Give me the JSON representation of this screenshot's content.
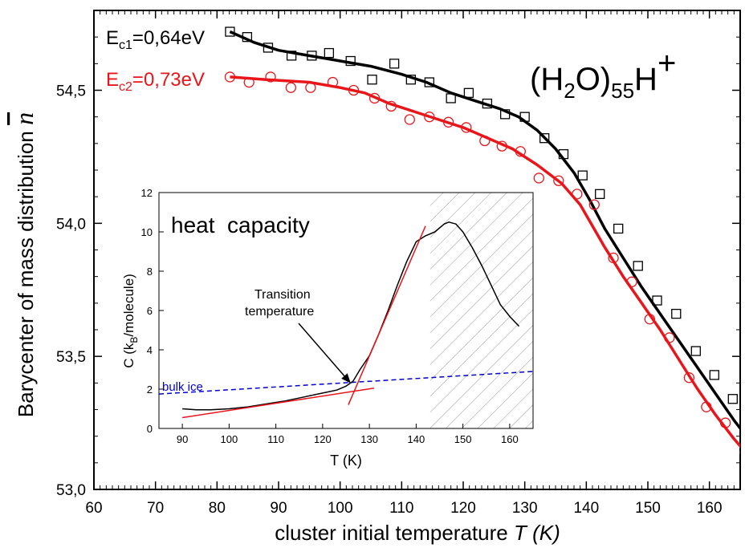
{
  "chart_data": [
    {
      "type": "scatter",
      "xlabel_text": "cluster initial temperature",
      "xlabel_symbol": "T",
      "xlabel_unit": "(K)",
      "ylabel_text": "Barycenter of mass distribution",
      "ylabel_symbol": "n",
      "xlim": [
        60,
        165
      ],
      "ylim": [
        53.0,
        54.8
      ],
      "xticks": [
        60,
        70,
        80,
        90,
        100,
        110,
        120,
        130,
        140,
        150,
        160
      ],
      "yticks": [
        53.0,
        53.5,
        54.0,
        54.5
      ],
      "ytick_labels": [
        "53,0",
        "53,5",
        "54,0",
        "54,5"
      ],
      "annotation": {
        "base": "(H",
        "sub1": "2",
        "mid": "O)",
        "sub2": "55",
        "tail": "H",
        "sup": "+"
      },
      "series": [
        {
          "name": "E_c1=0,64eV",
          "label_main": "E",
          "label_sub": "c1",
          "label_rest": "=0,64eV",
          "color": "#000000",
          "marker": "square",
          "points": [
            [
              82.1,
              54.72
            ],
            [
              84.9,
              54.7
            ],
            [
              88.3,
              54.66
            ],
            [
              92.1,
              54.63
            ],
            [
              95.4,
              54.63
            ],
            [
              98.2,
              54.64
            ],
            [
              101.7,
              54.61
            ],
            [
              105.2,
              54.54
            ],
            [
              108.8,
              54.6
            ],
            [
              111.5,
              54.54
            ],
            [
              114.5,
              54.53
            ],
            [
              118.0,
              54.47
            ],
            [
              120.9,
              54.49
            ],
            [
              123.9,
              54.45
            ],
            [
              126.8,
              54.41
            ],
            [
              130.0,
              54.4
            ],
            [
              133.2,
              54.32
            ],
            [
              136.3,
              54.26
            ],
            [
              139.4,
              54.18
            ],
            [
              142.2,
              54.11
            ],
            [
              145.2,
              53.98
            ],
            [
              148.4,
              53.84
            ],
            [
              151.5,
              53.71
            ],
            [
              154.6,
              53.66
            ],
            [
              157.8,
              53.52
            ],
            [
              160.8,
              53.43
            ],
            [
              163.8,
              53.34
            ],
            [
              166.9,
              53.24
            ]
          ],
          "fit": [
            [
              82.1,
              54.72
            ],
            [
              86,
              54.68
            ],
            [
              90,
              54.65
            ],
            [
              95,
              54.63
            ],
            [
              100,
              54.61
            ],
            [
              105,
              54.59
            ],
            [
              110,
              54.56
            ],
            [
              114,
              54.53
            ],
            [
              118,
              54.49
            ],
            [
              122,
              54.46
            ],
            [
              126,
              54.43
            ],
            [
              129,
              54.4
            ],
            [
              132,
              54.35
            ],
            [
              135,
              54.28
            ],
            [
              138,
              54.19
            ],
            [
              140.5,
              54.09
            ],
            [
              143,
              53.98
            ],
            [
              146,
              53.87
            ],
            [
              149,
              53.76
            ],
            [
              152,
              53.66
            ],
            [
              155,
              53.56
            ],
            [
              158,
              53.46
            ],
            [
              161,
              53.36
            ],
            [
              164,
              53.26
            ],
            [
              167,
              53.17
            ]
          ]
        },
        {
          "name": "E_c2=0,73eV",
          "label_main": "E",
          "label_sub": "c2",
          "label_rest": "=0,73eV",
          "color": "#e8161b",
          "marker": "circle",
          "points": [
            [
              82.1,
              54.55
            ],
            [
              85.2,
              54.53
            ],
            [
              88.7,
              54.55
            ],
            [
              92.0,
              54.51
            ],
            [
              95.2,
              54.51
            ],
            [
              98.8,
              54.53
            ],
            [
              102.2,
              54.5
            ],
            [
              105.6,
              54.47
            ],
            [
              108.3,
              54.44
            ],
            [
              111.3,
              54.39
            ],
            [
              114.5,
              54.4
            ],
            [
              117.6,
              54.38
            ],
            [
              120.5,
              54.36
            ],
            [
              123.5,
              54.31
            ],
            [
              126.3,
              54.29
            ],
            [
              129.3,
              54.27
            ],
            [
              132.3,
              54.17
            ],
            [
              135.5,
              54.16
            ],
            [
              138.5,
              54.11
            ],
            [
              141.3,
              54.07
            ],
            [
              144.4,
              53.87
            ],
            [
              147.4,
              53.78
            ],
            [
              150.3,
              53.64
            ],
            [
              153.5,
              53.57
            ],
            [
              156.7,
              53.42
            ],
            [
              159.5,
              53.31
            ],
            [
              162.6,
              53.25
            ],
            [
              165.8,
              53.14
            ]
          ],
          "fit": [
            [
              82.1,
              54.55
            ],
            [
              88,
              54.54
            ],
            [
              95,
              54.53
            ],
            [
              100,
              54.51
            ],
            [
              104,
              54.49
            ],
            [
              108,
              54.45
            ],
            [
              112,
              54.42
            ],
            [
              116,
              54.39
            ],
            [
              120,
              54.36
            ],
            [
              124,
              54.32
            ],
            [
              128,
              54.28
            ],
            [
              132,
              54.22
            ],
            [
              136,
              54.15
            ],
            [
              139,
              54.07
            ],
            [
              141,
              53.99
            ],
            [
              143,
              53.91
            ],
            [
              146,
              53.8
            ],
            [
              149,
              53.7
            ],
            [
              152,
              53.6
            ],
            [
              155,
              53.49
            ],
            [
              158,
              53.38
            ],
            [
              161,
              53.28
            ],
            [
              164,
              53.19
            ],
            [
              167,
              53.11
            ]
          ]
        }
      ]
    },
    {
      "type": "line",
      "title": "heat  capacity",
      "xlabel": "T (K)",
      "ylabel_main": "C (k",
      "ylabel_sub": "B",
      "ylabel_rest": "/molecule)",
      "xlim": [
        85,
        165
      ],
      "ylim": [
        0,
        12
      ],
      "xticks": [
        90,
        100,
        110,
        120,
        130,
        140,
        150,
        160
      ],
      "yticks": [
        0,
        2,
        4,
        6,
        8,
        10,
        12
      ],
      "hatched_region": [
        143,
        165
      ],
      "annotation_lines": [
        "Transition",
        "temperature"
      ],
      "annotation_target": [
        126,
        2.3
      ],
      "reference_line": {
        "name": "bulk ice",
        "color": "#0000cc",
        "style": "dashed",
        "points": [
          [
            85,
            1.75
          ],
          [
            165,
            2.9
          ]
        ]
      },
      "curve": {
        "color": "#000000",
        "points": [
          [
            90,
            1.0
          ],
          [
            93,
            0.95
          ],
          [
            96,
            0.95
          ],
          [
            100,
            1.0
          ],
          [
            104,
            1.1
          ],
          [
            108,
            1.25
          ],
          [
            112,
            1.4
          ],
          [
            116,
            1.6
          ],
          [
            120,
            1.8
          ],
          [
            123,
            1.95
          ],
          [
            125,
            2.15
          ],
          [
            126.5,
            2.4
          ],
          [
            128,
            3.0
          ],
          [
            130,
            3.7
          ],
          [
            132,
            4.8
          ],
          [
            134,
            6.0
          ],
          [
            136,
            7.3
          ],
          [
            138,
            8.5
          ],
          [
            140,
            9.5
          ],
          [
            142,
            9.8
          ],
          [
            144,
            10.0
          ],
          [
            146,
            10.4
          ],
          [
            147,
            10.5
          ],
          [
            148.5,
            10.4
          ],
          [
            150,
            10.0
          ],
          [
            152,
            9.2
          ],
          [
            154,
            8.3
          ],
          [
            156,
            7.3
          ],
          [
            158,
            6.3
          ],
          [
            160,
            5.7
          ],
          [
            162,
            5.2
          ]
        ]
      },
      "fit_lines": [
        {
          "color": "#e8161b",
          "points": [
            [
              90,
              0.55
            ],
            [
              131,
              2.05
            ]
          ]
        },
        {
          "color": "#e8161b",
          "points": [
            [
              125.5,
              1.2
            ],
            [
              142,
              10.3
            ]
          ]
        }
      ]
    }
  ]
}
